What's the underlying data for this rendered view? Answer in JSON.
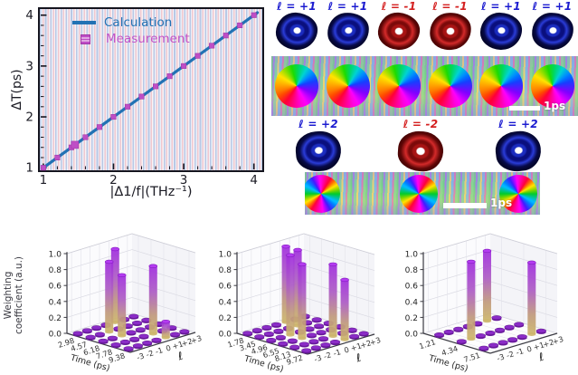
{
  "colors": {
    "calculation_blue": "#2272b4",
    "measurement_magenta": "#bf4ec6",
    "torus_label_blue": "#1b1bd0",
    "torus_label_red": "#d42020",
    "torus_blue": "#0a0f7e",
    "torus_red": "#a81414",
    "bar_purple": "#a12ede",
    "bar_tan": "#cdb66a",
    "disk_purple": "#8b2cc7"
  },
  "line_chart": {
    "ylabel": "ΔT(ps)",
    "xlabel": "|Δ1/f|(THz⁻¹)",
    "legend": [
      {
        "label": "Calculation",
        "type": "line"
      },
      {
        "label": "Measurement",
        "type": "square"
      }
    ],
    "xticks": [
      "1",
      "2",
      "3",
      "4"
    ],
    "yticks": [
      "1",
      "2",
      "3",
      "4"
    ]
  },
  "chart_data": [
    {
      "id": "delay-vs-inverse-frequency",
      "type": "line",
      "xlabel": "|Δ1/f|(THz⁻¹)",
      "ylabel": "ΔT(ps)",
      "xlim": [
        0.95,
        4.12
      ],
      "ylim": [
        0.95,
        4.12
      ],
      "xticks": [
        1,
        2,
        3,
        4
      ],
      "yticks": [
        1,
        2,
        3,
        4
      ],
      "minor_tick_step": 0.2,
      "legend_position": "upper-left",
      "grid": false,
      "series": [
        {
          "name": "Calculation",
          "type": "line",
          "x": [
            1.0,
            4.05
          ],
          "y": [
            1.0,
            4.05
          ]
        },
        {
          "name": "Measurement",
          "type": "scatter",
          "x": [
            1.0,
            1.2,
            1.4,
            1.45,
            1.6,
            1.8,
            2.0,
            2.2,
            2.4,
            2.6,
            2.8,
            3.0,
            3.2,
            3.4,
            3.6,
            3.8,
            4.0
          ],
          "y": [
            1.0,
            1.2,
            1.4,
            1.45,
            1.6,
            1.8,
            2.0,
            2.2,
            2.4,
            2.6,
            2.8,
            3.0,
            3.2,
            3.4,
            3.6,
            3.8,
            4.0
          ]
        }
      ]
    },
    {
      "id": "weighting-coefficients-1",
      "type": "bar3d",
      "zlabel": "Weighting coefficient (a.u.)",
      "zlabel_line1": "Weighting",
      "zlabel_line2": "coefficient (a.u.)",
      "xlabel": "Time (ps)",
      "ylabel": "ℓ",
      "time_ticks": [
        "2.98",
        "4.57",
        "6.18",
        "7.78",
        "9.38"
      ],
      "l_ticks": [
        "-3",
        "-2",
        "-1",
        "0",
        "+1",
        "+2",
        "+3"
      ],
      "zticks": [
        "0.0",
        "0.2",
        "0.4",
        "0.6",
        "0.8",
        "1.0"
      ],
      "zlim": [
        0,
        1
      ],
      "baseline_value": 0.02,
      "bars": [
        {
          "time": "2.98",
          "l": "+1",
          "value": 0.92
        },
        {
          "time": "4.57",
          "l": "-1",
          "value": 0.88
        },
        {
          "time": "6.18",
          "l": "-1",
          "value": 0.76
        },
        {
          "time": "7.78",
          "l": "+1",
          "value": 0.85
        },
        {
          "time": "9.38",
          "l": "+1",
          "value": 0.2
        }
      ]
    },
    {
      "id": "weighting-coefficients-2",
      "type": "bar3d",
      "xlabel": "Time (ps)",
      "ylabel": "ℓ",
      "time_ticks": [
        "1.78",
        "3.45",
        "4.96",
        "6.55",
        "8.13",
        "9.72"
      ],
      "l_ticks": [
        "-3",
        "-2",
        "-1",
        "0",
        "+1",
        "+2",
        "+3"
      ],
      "zticks": [
        "0.0",
        "0.2",
        "0.4",
        "0.6",
        "0.8",
        "1.0"
      ],
      "zlim": [
        0,
        1
      ],
      "baseline_value": 0.02,
      "bars": [
        {
          "time": "1.78",
          "l": "+1",
          "value": 0.95
        },
        {
          "time": "3.45",
          "l": "+1",
          "value": 0.95
        },
        {
          "time": "4.96",
          "l": "-1",
          "value": 1.0
        },
        {
          "time": "6.55",
          "l": "-1",
          "value": 0.93
        },
        {
          "time": "8.13",
          "l": "+1",
          "value": 0.9
        },
        {
          "time": "9.72",
          "l": "+1",
          "value": 0.75
        }
      ]
    },
    {
      "id": "weighting-coefficients-3",
      "type": "bar3d",
      "xlabel": "Time (ps)",
      "ylabel": "ℓ",
      "time_ticks": [
        "1.21",
        "4.34",
        "7.51"
      ],
      "l_ticks": [
        "-3",
        "-2",
        "-1",
        "0",
        "+1",
        "+2",
        "+3"
      ],
      "zticks": [
        "0.0",
        "0.2",
        "0.4",
        "0.6",
        "0.8",
        "1.0"
      ],
      "zlim": [
        0,
        1
      ],
      "baseline_value": 0.02,
      "bars": [
        {
          "time": "1.21",
          "l": "+2",
          "value": 0.88
        },
        {
          "time": "4.34",
          "l": "-2",
          "value": 0.97
        },
        {
          "time": "7.51",
          "l": "+2",
          "value": 0.9
        }
      ]
    }
  ],
  "vortex_rows": [
    {
      "tori": [
        {
          "label": "ℓ = +1",
          "polarity": "pos"
        },
        {
          "label": "ℓ = +1",
          "polarity": "pos"
        },
        {
          "label": "ℓ = -1",
          "polarity": "neg"
        },
        {
          "label": "ℓ = -1",
          "polarity": "neg"
        },
        {
          "label": "ℓ = +1",
          "polarity": "pos"
        },
        {
          "label": "ℓ = +1",
          "polarity": "pos"
        }
      ],
      "phase_map": {
        "vortices": 6,
        "winding": 1,
        "scale_bar_label": "1ps"
      }
    },
    {
      "tori": [
        {
          "label": "ℓ = +2",
          "polarity": "pos"
        },
        {
          "label": "ℓ = -2",
          "polarity": "neg"
        },
        {
          "label": "ℓ = +2",
          "polarity": "pos"
        }
      ],
      "phase_map": {
        "vortices": 3,
        "winding": 2,
        "scale_bar_label": "1ps"
      }
    }
  ]
}
